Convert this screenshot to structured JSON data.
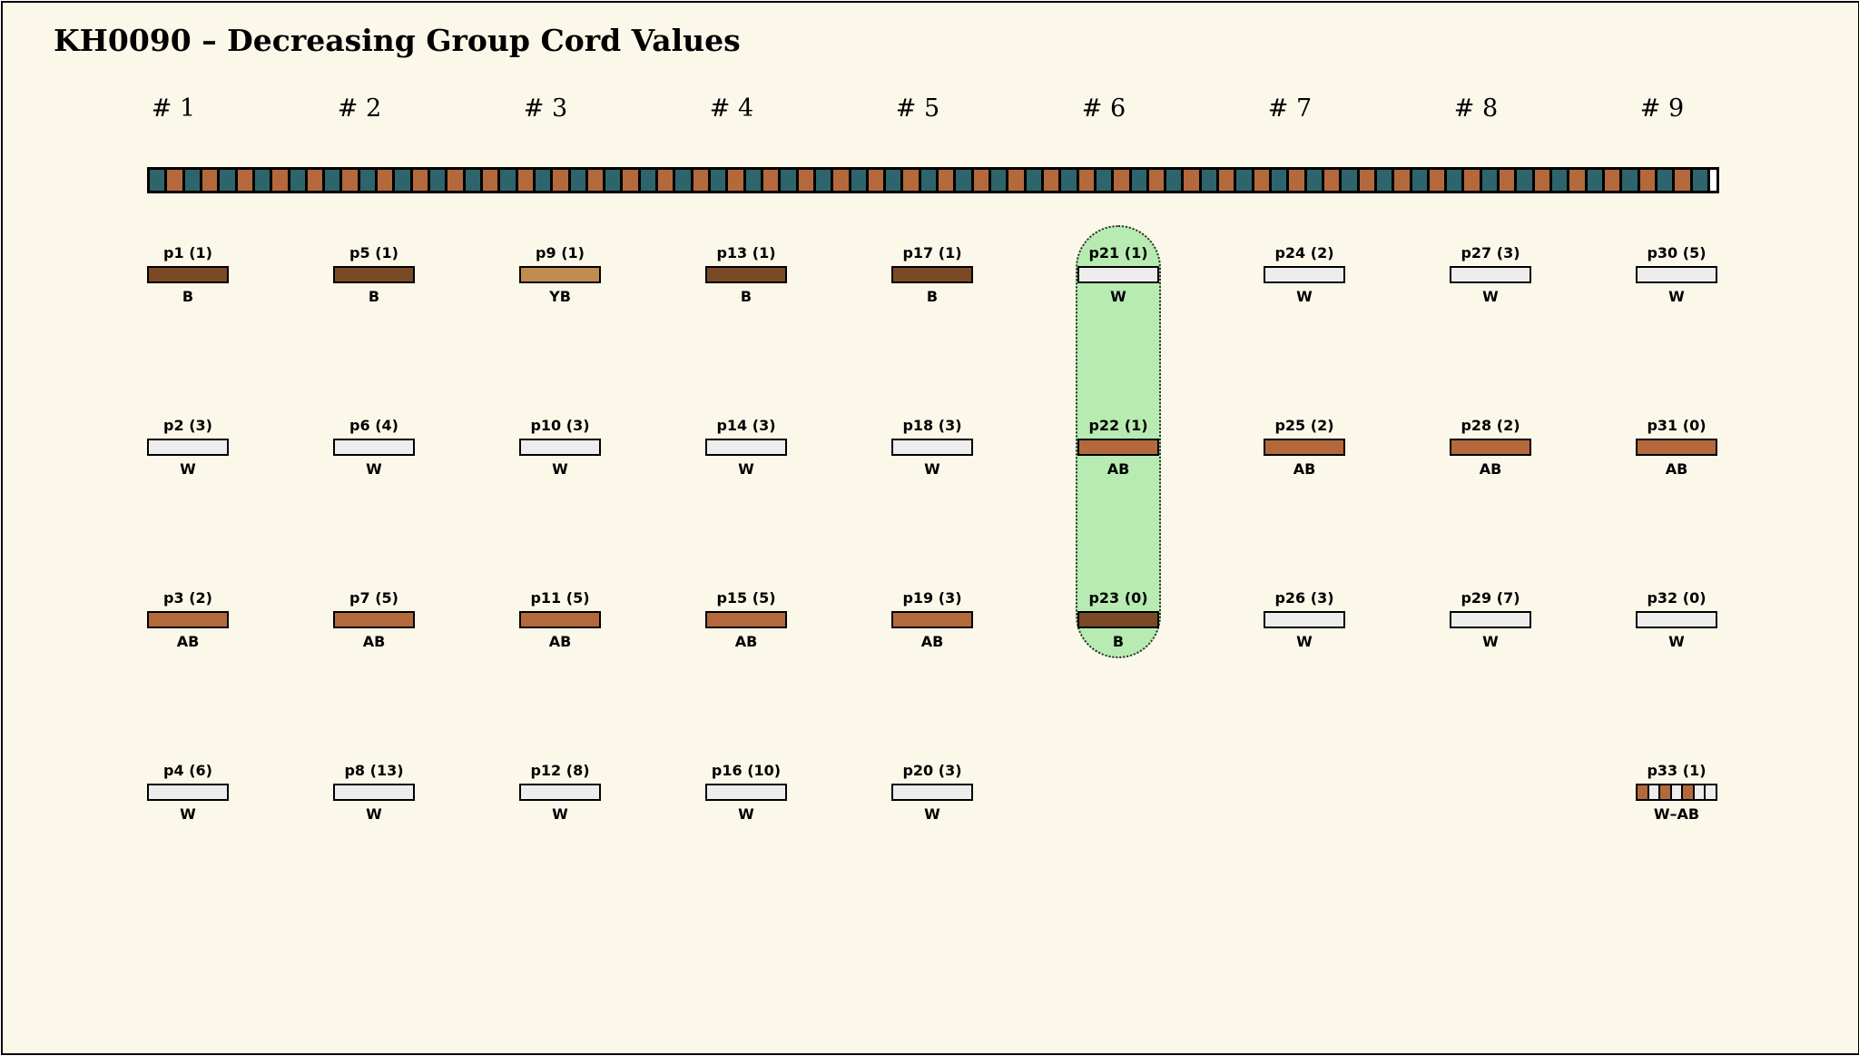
{
  "title": "KH0090 – Decreasing Group Cord Values",
  "colors": {
    "background": "#FBF8EA",
    "border": "#000000",
    "teal": "#2E646B",
    "copper": "#B3693C",
    "brown": "#7A4A27",
    "tan": "#C18C52",
    "white_bar": "#EDEDED",
    "highlight_green": "#B7EBB2"
  },
  "code_colors": {
    "B": "brown",
    "AB": "copper",
    "YB": "tan",
    "W": "white_bar"
  },
  "top_band": {
    "cell_count": 89,
    "alternating": [
      "teal",
      "copper"
    ],
    "end_cap_color": "#FFFFFF"
  },
  "columns": [
    {
      "header": "# 1",
      "highlighted": false,
      "units": [
        {
          "row": 1,
          "label": "p1 (1)",
          "code": "B"
        },
        {
          "row": 2,
          "label": "p2 (3)",
          "code": "W"
        },
        {
          "row": 3,
          "label": "p3 (2)",
          "code": "AB"
        },
        {
          "row": 4,
          "label": "p4 (6)",
          "code": "W"
        }
      ]
    },
    {
      "header": "# 2",
      "highlighted": false,
      "units": [
        {
          "row": 1,
          "label": "p5 (1)",
          "code": "B"
        },
        {
          "row": 2,
          "label": "p6 (4)",
          "code": "W"
        },
        {
          "row": 3,
          "label": "p7 (5)",
          "code": "AB"
        },
        {
          "row": 4,
          "label": "p8 (13)",
          "code": "W"
        }
      ]
    },
    {
      "header": "# 3",
      "highlighted": false,
      "units": [
        {
          "row": 1,
          "label": "p9 (1)",
          "code": "YB"
        },
        {
          "row": 2,
          "label": "p10 (3)",
          "code": "W"
        },
        {
          "row": 3,
          "label": "p11 (5)",
          "code": "AB"
        },
        {
          "row": 4,
          "label": "p12 (8)",
          "code": "W"
        }
      ]
    },
    {
      "header": "# 4",
      "highlighted": false,
      "units": [
        {
          "row": 1,
          "label": "p13 (1)",
          "code": "B"
        },
        {
          "row": 2,
          "label": "p14 (3)",
          "code": "W"
        },
        {
          "row": 3,
          "label": "p15 (5)",
          "code": "AB"
        },
        {
          "row": 4,
          "label": "p16 (10)",
          "code": "W"
        }
      ]
    },
    {
      "header": "# 5",
      "highlighted": false,
      "units": [
        {
          "row": 1,
          "label": "p17 (1)",
          "code": "B"
        },
        {
          "row": 2,
          "label": "p18 (3)",
          "code": "W"
        },
        {
          "row": 3,
          "label": "p19 (3)",
          "code": "AB"
        },
        {
          "row": 4,
          "label": "p20 (3)",
          "code": "W"
        }
      ]
    },
    {
      "header": "# 6",
      "highlighted": true,
      "units": [
        {
          "row": 1,
          "label": "p21 (1)",
          "code": "W"
        },
        {
          "row": 2,
          "label": "p22 (1)",
          "code": "AB"
        },
        {
          "row": 3,
          "label": "p23 (0)",
          "code": "B"
        }
      ]
    },
    {
      "header": "# 7",
      "highlighted": false,
      "units": [
        {
          "row": 1,
          "label": "p24 (2)",
          "code": "W"
        },
        {
          "row": 2,
          "label": "p25 (2)",
          "code": "AB"
        },
        {
          "row": 3,
          "label": "p26 (3)",
          "code": "W"
        }
      ]
    },
    {
      "header": "# 8",
      "highlighted": false,
      "units": [
        {
          "row": 1,
          "label": "p27 (3)",
          "code": "W"
        },
        {
          "row": 2,
          "label": "p28 (2)",
          "code": "AB"
        },
        {
          "row": 3,
          "label": "p29 (7)",
          "code": "W"
        }
      ]
    },
    {
      "header": "# 9",
      "highlighted": false,
      "units": [
        {
          "row": 1,
          "label": "p30 (5)",
          "code": "W"
        },
        {
          "row": 2,
          "label": "p31 (0)",
          "code": "AB"
        },
        {
          "row": 3,
          "label": "p32 (0)",
          "code": "W"
        },
        {
          "row": 4,
          "label": "p33 (1)",
          "code": "W–AB",
          "segments": [
            "AB",
            "W",
            "AB",
            "W",
            "AB",
            "W",
            "W"
          ]
        }
      ]
    }
  ]
}
